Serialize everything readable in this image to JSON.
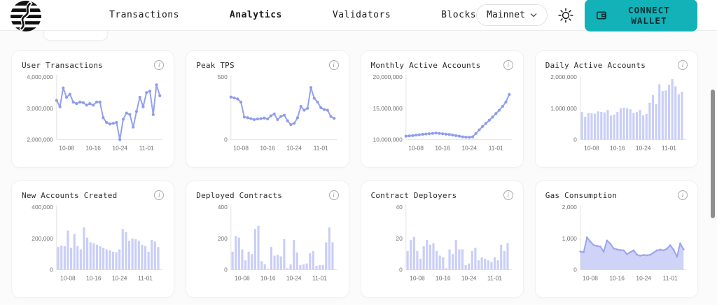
{
  "header": {
    "logo_name": "striped-sphere-logo",
    "nav": [
      {
        "label": "Transactions",
        "active": false
      },
      {
        "label": "Analytics",
        "active": true
      },
      {
        "label": "Validators",
        "active": false
      },
      {
        "label": "Blocks",
        "active": false
      }
    ],
    "network": {
      "label": "Mainnet"
    },
    "connect_wallet_label": "CONNECT WALLET"
  },
  "colors": {
    "accent": "#12b2b8",
    "line": "#93a1ef",
    "dot": "#8e9cee",
    "bar": "#c9cef8",
    "area_fill": "#c9cef6",
    "area_line": "#9aa5f0",
    "axis_line": "#e3e3e3",
    "axis_text": "#6f6f6f"
  },
  "chart_data": [
    {
      "title": "User Transactions",
      "type": "line",
      "y_labels": [
        "4,000,000",
        "3,000,000",
        "2,000,000"
      ],
      "ymin": 2000000,
      "ymax": 4000000,
      "x_labels": [
        "10-08",
        "10-16",
        "10-24",
        "11-01"
      ],
      "tick_indices": [
        3,
        11,
        19,
        27
      ],
      "values": [
        3250000,
        3050000,
        3650000,
        3350000,
        3450000,
        3200000,
        3150000,
        3200000,
        3180000,
        3100000,
        3150000,
        3100000,
        3200000,
        3200000,
        2700000,
        2550000,
        2500000,
        2520000,
        2550000,
        2000000,
        2650000,
        2850000,
        2800000,
        2400000,
        2900000,
        3350000,
        3050000,
        3500000,
        3550000,
        2800000,
        3750000,
        3400000
      ]
    },
    {
      "title": "Peak TPS",
      "type": "line",
      "y_labels": [
        "500",
        "0"
      ],
      "ymin": 0,
      "ymax": 500,
      "x_labels": [
        "10-08",
        "10-16",
        "10-24",
        "11-01"
      ],
      "tick_indices": [
        3,
        11,
        19,
        27
      ],
      "values": [
        340,
        332,
        325,
        300,
        180,
        175,
        168,
        160,
        165,
        168,
        172,
        165,
        190,
        205,
        160,
        185,
        195,
        150,
        120,
        130,
        175,
        265,
        235,
        250,
        415,
        330,
        300,
        255,
        240,
        235,
        185,
        170
      ]
    },
    {
      "title": "Monthly Active Accounts",
      "type": "line",
      "y_labels": [
        "20,000,000",
        "15,000,000",
        "10,000,000"
      ],
      "ymin": 10000000,
      "ymax": 20000000,
      "x_labels": [
        "10-08",
        "10-16",
        "10-24",
        "11-01"
      ],
      "tick_indices": [
        3,
        11,
        19,
        27
      ],
      "values": [
        10550000,
        10600000,
        10650000,
        10720000,
        10780000,
        10850000,
        10900000,
        10950000,
        11000000,
        11050000,
        11000000,
        10950000,
        10880000,
        10820000,
        10750000,
        10650000,
        10550000,
        10450000,
        10400000,
        10380000,
        10450000,
        11000000,
        11550000,
        12100000,
        12600000,
        13100000,
        13600000,
        14150000,
        14700000,
        15300000,
        16000000,
        17200000
      ]
    },
    {
      "title": "Daily Active Accounts",
      "type": "bar",
      "y_labels": [
        "2,000,000",
        "1,000,000",
        "0"
      ],
      "ymin": 0,
      "ymax": 2000000,
      "x_labels": [
        "10-08",
        "10-16",
        "10-24",
        "11-01"
      ],
      "tick_indices": [
        3,
        11,
        19,
        27
      ],
      "values": [
        880000,
        730000,
        850000,
        845000,
        830000,
        900000,
        885000,
        870000,
        950000,
        770000,
        800000,
        880000,
        1000000,
        1020000,
        1000000,
        970000,
        850000,
        880000,
        950000,
        780000,
        820000,
        1180000,
        1420000,
        1130000,
        1770000,
        1550000,
        1570000,
        1750000,
        1930000,
        1700000,
        1450000,
        1530000
      ]
    },
    {
      "title": "New Accounts Created",
      "type": "bar",
      "y_labels": [
        "400,000",
        "200,000",
        "0"
      ],
      "ymin": 0,
      "ymax": 400000,
      "x_labels": [
        "10-08",
        "10-16",
        "10-24",
        "11-01"
      ],
      "tick_indices": [
        3,
        11,
        19,
        27
      ],
      "values": [
        145000,
        155000,
        150000,
        250000,
        140000,
        228000,
        150000,
        130000,
        270000,
        205000,
        175000,
        170000,
        160000,
        150000,
        140000,
        130000,
        125000,
        115000,
        112000,
        130000,
        260000,
        240000,
        185000,
        200000,
        195000,
        185000,
        160000,
        150000,
        115000,
        190000,
        180000,
        145000
      ]
    },
    {
      "title": "Deployed Contracts",
      "type": "bar",
      "y_labels": [
        "400",
        "200",
        "0"
      ],
      "ymin": 0,
      "ymax": 400,
      "x_labels": [
        "10-08",
        "10-16",
        "10-24",
        "11-01"
      ],
      "tick_indices": [
        3,
        11,
        19,
        27
      ],
      "values": [
        115,
        215,
        205,
        130,
        60,
        115,
        100,
        260,
        280,
        55,
        35,
        5,
        145,
        90,
        95,
        85,
        195,
        10,
        35,
        190,
        110,
        30,
        35,
        40,
        105,
        120,
        25,
        30,
        30,
        175,
        270,
        175
      ]
    },
    {
      "title": "Contract Deployers",
      "type": "bar",
      "y_labels": [
        "40",
        "20",
        "0"
      ],
      "ymin": 0,
      "ymax": 40,
      "x_labels": [
        "10-08",
        "10-16",
        "10-24",
        "11-01"
      ],
      "tick_indices": [
        3,
        11,
        19,
        27
      ],
      "values": [
        12,
        19,
        21,
        12,
        7,
        15,
        19,
        16,
        17,
        12,
        9,
        8,
        1,
        13,
        10,
        19,
        13,
        13,
        3,
        4,
        12,
        14,
        6,
        8,
        7,
        6,
        5,
        8,
        6,
        16,
        12,
        17
      ]
    },
    {
      "title": "Gas Consumption",
      "type": "area",
      "y_labels": [
        "2,000",
        "1,000",
        "0"
      ],
      "ymin": 0,
      "ymax": 2000,
      "x_labels": [
        "10-08",
        "10-16",
        "10-24",
        "11-01"
      ],
      "tick_indices": [
        3,
        11,
        19,
        27
      ],
      "values": [
        580,
        560,
        1030,
        900,
        790,
        760,
        740,
        580,
        930,
        830,
        680,
        650,
        630,
        620,
        500,
        560,
        620,
        480,
        450,
        470,
        460,
        480,
        550,
        620,
        640,
        620,
        670,
        780,
        640,
        420,
        840,
        650
      ]
    }
  ]
}
